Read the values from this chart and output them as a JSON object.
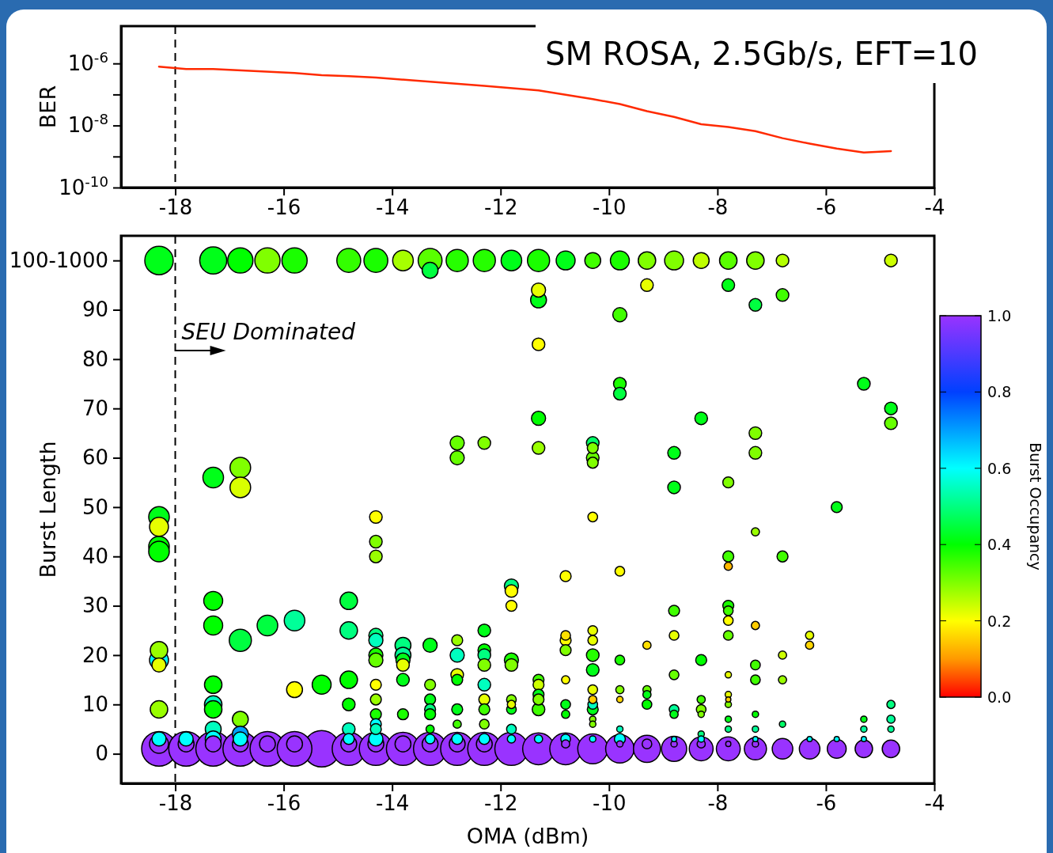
{
  "chart_data": [
    {
      "type": "line",
      "title": "SM ROSA, 2.5Gb/s, EFT=10",
      "ylabel": "BER",
      "log": "y",
      "xlim": [
        -19,
        -4
      ],
      "xticks": [
        -18,
        -16,
        -14,
        -12,
        -10,
        -8,
        -6,
        -4
      ],
      "ylim": [
        1e-10,
        1.6e-05
      ],
      "yticks": [
        {
          "value": 1e-10,
          "label": "10$^{-10}$"
        },
        {
          "value": 1e-09,
          "label": null
        },
        {
          "value": 1e-08,
          "label": "10$^{-8}$"
        },
        {
          "value": 1e-07,
          "label": null
        },
        {
          "value": 1e-06,
          "label": "10$^{-6}$"
        }
      ],
      "ref_lines": [
        {
          "axis": "x",
          "value": -18,
          "label": null,
          "line_style": "dashed"
        }
      ],
      "series": [
        {
          "color": "#ff2a00",
          "x": [
            -18.3,
            -17.8,
            -17.3,
            -15.8,
            -15.3,
            -14.8,
            -14.3,
            -13.3,
            -12.3,
            -11.3,
            -10.3,
            -9.8,
            -9.3,
            -8.8,
            -8.3,
            -7.8,
            -7.3,
            -6.8,
            -6.3,
            -5.8,
            -5.3,
            -4.8
          ],
          "values": [
            7.9e-07,
            6.6e-07,
            6.6e-07,
            4.9e-07,
            4.2e-07,
            3.9e-07,
            3.5e-07,
            2.6e-07,
            1.9e-07,
            1.35e-07,
            7.1e-08,
            4.9e-08,
            2.9e-08,
            1.9e-08,
            1.1e-08,
            8.9e-09,
            6.6e-09,
            3.9e-09,
            2.6e-09,
            1.8e-09,
            1.35e-09,
            1.5e-09
          ]
        }
      ]
    },
    {
      "type": "bubble",
      "xlabel": "OMA (dBm)",
      "ylabel": "Burst Length",
      "clabel": "Burst Occupancy",
      "xlim": [
        -19,
        -4
      ],
      "xticks": [
        -18,
        -16,
        -14,
        -12,
        -10,
        -8,
        -6,
        -4
      ],
      "ylim": [
        -6,
        105
      ],
      "yticks": [
        0,
        10,
        20,
        30,
        40,
        50,
        60,
        70,
        80,
        90,
        {
          "value": 100,
          "label": "100-1000"
        }
      ],
      "clim": [
        0,
        1
      ],
      "cticks": [
        {
          "value": 0,
          "label": "0.0"
        },
        {
          "value": 0.2,
          "label": "0.2"
        },
        {
          "value": 0.4,
          "label": "0.4"
        },
        {
          "value": 0.6,
          "label": "0.6"
        },
        {
          "value": 0.8,
          "label": "0.8"
        },
        {
          "value": 1,
          "label": "1.0"
        }
      ],
      "ref_lines": [
        {
          "axis": "x",
          "value": -18,
          "label": null,
          "line_style": "dashed"
        }
      ],
      "annotations": [
        {
          "text": "SEU Dominated",
          "x": -18,
          "y": 84
        }
      ],
      "x": [
        -18.3,
        -18.3,
        -18.3,
        -18.3,
        -18.3,
        -18.3,
        -18.3,
        -18.3,
        -18.3,
        -18.3,
        -18.3,
        -18.3,
        -17.8,
        -17.8,
        -17.8,
        -17.3,
        -17.3,
        -17.3,
        -17.3,
        -17.3,
        -17.3,
        -17.3,
        -17.3,
        -17.3,
        -17.3,
        -17.3,
        -16.8,
        -16.8,
        -16.8,
        -16.8,
        -16.8,
        -16.8,
        -16.8,
        -16.8,
        -16.8,
        -16.3,
        -16.3,
        -16.3,
        -16.3,
        -15.8,
        -15.8,
        -15.8,
        -15.8,
        -15.8,
        -15.3,
        -15.3,
        -14.8,
        -14.8,
        -14.8,
        -14.8,
        -14.8,
        -14.8,
        -14.8,
        -14.8,
        -14.8,
        -14.3,
        -14.3,
        -14.3,
        -14.3,
        -14.3,
        -14.3,
        -14.3,
        -14.3,
        -14.3,
        -14.3,
        -14.3,
        -14.3,
        -14.3,
        -14.3,
        -14.3,
        -14.3,
        -13.8,
        -13.8,
        -13.8,
        -13.8,
        -13.8,
        -13.8,
        -13.8,
        -13.8,
        -13.8,
        -13.3,
        -13.3,
        -13.3,
        -13.3,
        -13.3,
        -13.3,
        -13.3,
        -13.3,
        -13.3,
        -13.3,
        -13.3,
        -12.8,
        -12.8,
        -12.8,
        -12.8,
        -12.8,
        -12.8,
        -12.8,
        -12.8,
        -12.8,
        -12.8,
        -12.8,
        -12.8,
        -12.3,
        -12.3,
        -12.3,
        -12.3,
        -12.3,
        -12.3,
        -12.3,
        -12.3,
        -12.3,
        -12.3,
        -12.3,
        -12.3,
        -12.3,
        -11.8,
        -11.8,
        -11.8,
        -11.8,
        -11.8,
        -11.8,
        -11.8,
        -11.8,
        -11.8,
        -11.8,
        -11.8,
        -11.8,
        -11.3,
        -11.3,
        -11.3,
        -11.3,
        -11.3,
        -11.3,
        -11.3,
        -11.3,
        -11.3,
        -11.3,
        -11.3,
        -11.3,
        -11.3,
        -10.8,
        -10.8,
        -10.8,
        -10.8,
        -10.8,
        -10.8,
        -10.8,
        -10.8,
        -10.8,
        -10.8,
        -10.8,
        -10.3,
        -10.3,
        -10.3,
        -10.3,
        -10.3,
        -10.3,
        -10.3,
        -10.3,
        -10.3,
        -10.3,
        -10.3,
        -10.3,
        -10.3,
        -10.3,
        -10.3,
        -10.3,
        -10.3,
        -10.3,
        -9.8,
        -9.8,
        -9.8,
        -9.8,
        -9.8,
        -9.8,
        -9.8,
        -9.8,
        -9.8,
        -9.8,
        -9.8,
        -9.8,
        -9.3,
        -9.3,
        -9.3,
        -9.3,
        -9.3,
        -9.3,
        -9.3,
        -9.3,
        -8.8,
        -8.8,
        -8.8,
        -8.8,
        -8.8,
        -8.8,
        -8.8,
        -8.8,
        -8.8,
        -8.8,
        -8.8,
        -8.3,
        -8.3,
        -8.3,
        -8.3,
        -8.3,
        -8.3,
        -8.3,
        -8.3,
        -8.3,
        -8.3,
        -7.8,
        -7.8,
        -7.8,
        -7.8,
        -7.8,
        -7.8,
        -7.8,
        -7.8,
        -7.8,
        -7.8,
        -7.8,
        -7.8,
        -7.8,
        -7.8,
        -7.8,
        -7.8,
        -7.8,
        -7.3,
        -7.3,
        -7.3,
        -7.3,
        -7.3,
        -7.3,
        -7.3,
        -7.3,
        -7.3,
        -7.3,
        -7.3,
        -7.3,
        -7.3,
        -6.8,
        -6.8,
        -6.8,
        -6.8,
        -6.8,
        -6.8,
        -6.8,
        -6.3,
        -6.3,
        -6.3,
        -6.3,
        -5.8,
        -5.8,
        -5.8,
        -5.3,
        -5.3,
        -5.3,
        -5.3,
        -5.3,
        -4.8,
        -4.8,
        -4.8,
        -4.8,
        -4.8,
        -4.8,
        -4.8
      ],
      "values": [
        100,
        48,
        46,
        42,
        41,
        21,
        19,
        18,
        9,
        3,
        2,
        1,
        3,
        2,
        1,
        100,
        56,
        31,
        26,
        14,
        10,
        9,
        5,
        3,
        2,
        1,
        100,
        58,
        54,
        23,
        7,
        4,
        3,
        2,
        1,
        100,
        26,
        2,
        1,
        100,
        27,
        13,
        2,
        1,
        14,
        1,
        100,
        31,
        25,
        15,
        10,
        5,
        3,
        2,
        1,
        100,
        48,
        43,
        40,
        24,
        23,
        20,
        19,
        14,
        11,
        8,
        6,
        5,
        3,
        2,
        1,
        100,
        22,
        20,
        19,
        18,
        15,
        8,
        2,
        1,
        100,
        98,
        22,
        14,
        11,
        9,
        8,
        5,
        3,
        2,
        1,
        100,
        63,
        60,
        23,
        20,
        16,
        15,
        9,
        6,
        3,
        2,
        1,
        100,
        63,
        25,
        21,
        20,
        18,
        14,
        11,
        9,
        6,
        3,
        2,
        1,
        100,
        34,
        33,
        30,
        19,
        18,
        11,
        10,
        9,
        5,
        3,
        1,
        100,
        94,
        92,
        83,
        68,
        62,
        15,
        14,
        12,
        11,
        9,
        3,
        1,
        100,
        36,
        24,
        23,
        21,
        15,
        10,
        8,
        3,
        2,
        1,
        100,
        63,
        62,
        60,
        59,
        48,
        25,
        23,
        20,
        17,
        13,
        11,
        10,
        9,
        7,
        6,
        3,
        1,
        100,
        89,
        75,
        73,
        37,
        19,
        13,
        11,
        5,
        3,
        2,
        1,
        100,
        95,
        22,
        13,
        12,
        10,
        2,
        1,
        100,
        61,
        54,
        29,
        24,
        16,
        9,
        8,
        3,
        2,
        1,
        100,
        68,
        19,
        11,
        9,
        8,
        4,
        3,
        2,
        1,
        100,
        95,
        55,
        40,
        38,
        30,
        29,
        27,
        24,
        16,
        12,
        11,
        10,
        7,
        5,
        2,
        1,
        100,
        91,
        65,
        61,
        45,
        26,
        18,
        15,
        8,
        5,
        3,
        2,
        1,
        100,
        93,
        40,
        20,
        15,
        6,
        1,
        24,
        22,
        3,
        1,
        50,
        3,
        1,
        75,
        7,
        5,
        3,
        1,
        100,
        70,
        67,
        10,
        7,
        5,
        1
      ],
      "cvalues": [
        0.42,
        0.42,
        0.22,
        0.4,
        0.4,
        0.28,
        0.6,
        0.22,
        0.28,
        0.6,
        1,
        1,
        0.6,
        1,
        1,
        0.42,
        0.42,
        0.4,
        0.4,
        0.4,
        0.55,
        0.4,
        0.55,
        0.6,
        1,
        1,
        0.4,
        0.3,
        0.23,
        0.45,
        0.3,
        0.7,
        0.6,
        1,
        1,
        0.3,
        0.45,
        1,
        1,
        0.38,
        0.52,
        0.2,
        1,
        1,
        0.4,
        1,
        0.36,
        0.45,
        0.5,
        0.4,
        0.4,
        0.55,
        0.6,
        1,
        1,
        0.38,
        0.2,
        0.3,
        0.28,
        0.5,
        0.55,
        0.38,
        0.32,
        0.2,
        0.28,
        0.38,
        0.6,
        0.55,
        0.6,
        1,
        1,
        0.27,
        0.5,
        0.52,
        0.42,
        0.22,
        0.42,
        0.38,
        1,
        1,
        0.33,
        0.45,
        0.42,
        0.3,
        0.42,
        0.5,
        0.4,
        0.4,
        0.6,
        1,
        1,
        0.37,
        0.32,
        0.32,
        0.28,
        0.55,
        0.22,
        0.4,
        0.42,
        0.35,
        0.6,
        1,
        1,
        0.37,
        0.3,
        0.42,
        0.4,
        0.5,
        0.3,
        0.55,
        0.22,
        0.35,
        0.3,
        0.6,
        1,
        1,
        0.42,
        0.5,
        0.2,
        0.2,
        0.38,
        0.3,
        0.3,
        0.22,
        0.42,
        0.55,
        0.6,
        1,
        0.38,
        0.22,
        0.42,
        0.2,
        0.4,
        0.28,
        0.35,
        0.24,
        0.42,
        0.3,
        0.35,
        0.6,
        1,
        0.42,
        0.2,
        0.17,
        0.2,
        0.3,
        0.2,
        0.42,
        0.4,
        0.6,
        1,
        1,
        0.35,
        0.48,
        0.3,
        0.32,
        0.3,
        0.2,
        0.22,
        0.22,
        0.37,
        0.42,
        0.22,
        0.15,
        0.55,
        0.42,
        0.3,
        0.3,
        0.6,
        1,
        0.38,
        0.35,
        0.38,
        0.45,
        0.2,
        0.38,
        0.3,
        0.16,
        0.55,
        0.6,
        1,
        1,
        0.3,
        0.22,
        0.17,
        0.32,
        0.42,
        0.4,
        1,
        1,
        0.3,
        0.42,
        0.42,
        0.35,
        0.22,
        0.32,
        0.52,
        0.42,
        0.6,
        1,
        1,
        0.25,
        0.42,
        0.4,
        0.35,
        0.3,
        0.3,
        0.5,
        0.6,
        1,
        1,
        0.33,
        0.42,
        0.3,
        0.35,
        0.13,
        0.38,
        0.35,
        0.2,
        0.32,
        0.22,
        0.22,
        0.15,
        0.3,
        0.42,
        0.5,
        1,
        1,
        0.3,
        0.45,
        0.3,
        0.3,
        0.28,
        0.15,
        0.35,
        0.35,
        0.4,
        0.52,
        0.6,
        1,
        1,
        0.26,
        0.35,
        0.35,
        0.24,
        0.28,
        0.48,
        1,
        0.22,
        0.16,
        0.6,
        1,
        0.42,
        0.6,
        1,
        0.42,
        0.42,
        0.52,
        0.6,
        1,
        0.24,
        0.42,
        0.32,
        0.5,
        0.52,
        0.52,
        1
      ],
      "sizes": [
        0.61,
        0.32,
        0.27,
        0.32,
        0.32,
        0.23,
        0.27,
        0.15,
        0.23,
        0.15,
        0.27,
        0.91,
        0.15,
        0.19,
        0.91,
        0.55,
        0.32,
        0.27,
        0.27,
        0.23,
        0.23,
        0.23,
        0.19,
        0.19,
        0.19,
        0.91,
        0.48,
        0.32,
        0.32,
        0.37,
        0.19,
        0.19,
        0.15,
        0.19,
        0.91,
        0.48,
        0.32,
        0.19,
        0.91,
        0.48,
        0.32,
        0.19,
        0.19,
        0.91,
        0.27,
        1,
        0.43,
        0.23,
        0.23,
        0.23,
        0.12,
        0.12,
        0.09,
        0.19,
        0.83,
        0.43,
        0.12,
        0.12,
        0.12,
        0.15,
        0.15,
        0.15,
        0.15,
        0.09,
        0.09,
        0.09,
        0.09,
        0.09,
        0.15,
        0.19,
        0.83,
        0.32,
        0.19,
        0.19,
        0.15,
        0.12,
        0.12,
        0.09,
        0.19,
        0.83,
        0.43,
        0.19,
        0.15,
        0.09,
        0.09,
        0.09,
        0.09,
        0.05,
        0.07,
        0.19,
        0.83,
        0.37,
        0.15,
        0.15,
        0.09,
        0.15,
        0.12,
        0.09,
        0.09,
        0.05,
        0.09,
        0.19,
        0.83,
        0.37,
        0.12,
        0.12,
        0.12,
        0.12,
        0.12,
        0.12,
        0.09,
        0.09,
        0.07,
        0.09,
        0.19,
        0.83,
        0.32,
        0.15,
        0.12,
        0.09,
        0.15,
        0.12,
        0.07,
        0.05,
        0.07,
        0.07,
        0.05,
        0.83,
        0.37,
        0.15,
        0.19,
        0.12,
        0.15,
        0.12,
        0.09,
        0.09,
        0.09,
        0.09,
        0.12,
        0.05,
        0.76,
        0.27,
        0.09,
        0.07,
        0.09,
        0.09,
        0.05,
        0.07,
        0.05,
        0.07,
        0.05,
        0.76,
        0.19,
        0.12,
        0.09,
        0.12,
        0.09,
        0.07,
        0.07,
        0.07,
        0.12,
        0.12,
        0.07,
        0.05,
        0.07,
        0.09,
        0.03,
        0.03,
        0.03,
        0.68,
        0.27,
        0.15,
        0.12,
        0.12,
        0.07,
        0.07,
        0.05,
        0.03,
        0.03,
        0.09,
        0.03,
        0.61,
        0.23,
        0.12,
        0.05,
        0.05,
        0.05,
        0.07,
        0.07,
        0.55,
        0.27,
        0.12,
        0.12,
        0.09,
        0.07,
        0.07,
        0.07,
        0.05,
        0.02,
        0.03,
        0.48,
        0.19,
        0.12,
        0.09,
        0.05,
        0.07,
        0.03,
        0.03,
        0.03,
        0.05,
        0.43,
        0.23,
        0.12,
        0.09,
        0.09,
        0.05,
        0.09,
        0.07,
        0.07,
        0.07,
        0.03,
        0.03,
        0.02,
        0.03,
        0.03,
        0.03,
        0.02,
        0.43,
        0.23,
        0.12,
        0.12,
        0.12,
        0.05,
        0.05,
        0.07,
        0.07,
        0.03,
        0.03,
        0.02,
        0.03,
        0.37,
        0.12,
        0.12,
        0.09,
        0.05,
        0.05,
        0.03,
        0.32,
        0.05,
        0.05,
        0.02,
        0.32,
        0.09,
        0.02,
        0.27,
        0.12,
        0.03,
        0.03,
        0.02,
        0.23,
        0.12,
        0.12,
        0.12,
        0.05,
        0.05,
        0.03,
        0.23
      ]
    }
  ]
}
